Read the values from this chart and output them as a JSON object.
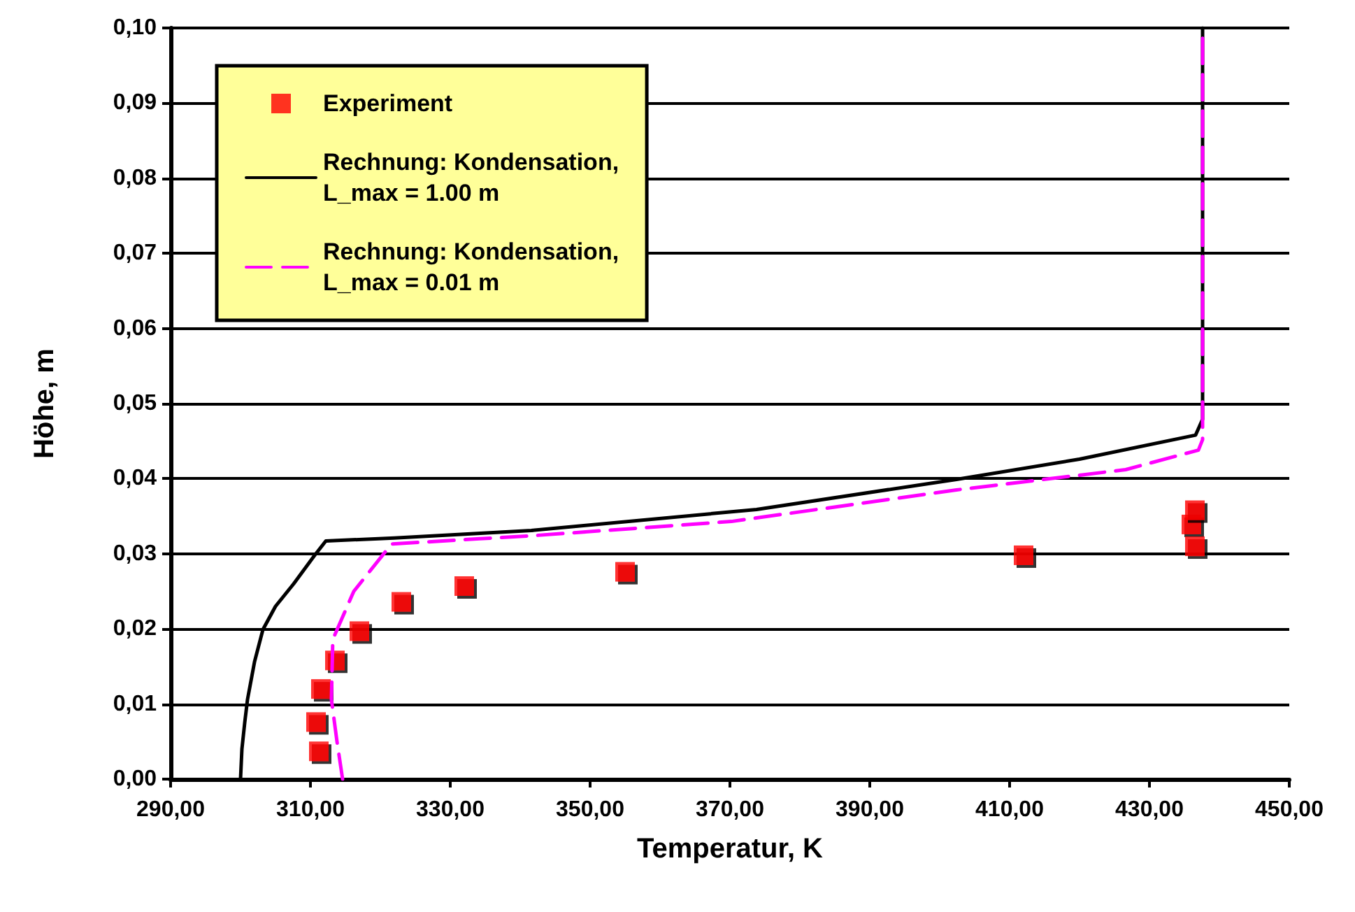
{
  "chart_data": {
    "type": "line",
    "xlabel": "Temperatur, K",
    "ylabel": "Höhe, m",
    "xlim": [
      290,
      450
    ],
    "ylim": [
      0,
      0.1
    ],
    "xticks": [
      {
        "value": 290,
        "label": "290,00"
      },
      {
        "value": 310,
        "label": "310,00"
      },
      {
        "value": 330,
        "label": "330,00"
      },
      {
        "value": 350,
        "label": "350,00"
      },
      {
        "value": 370,
        "label": "370,00"
      },
      {
        "value": 390,
        "label": "390,00"
      },
      {
        "value": 410,
        "label": "410,00"
      },
      {
        "value": 430,
        "label": "430,00"
      },
      {
        "value": 450,
        "label": "450,00"
      }
    ],
    "yticks": [
      {
        "value": 0,
        "label": "0,00"
      },
      {
        "value": 0.01,
        "label": "0,01"
      },
      {
        "value": 0.02,
        "label": "0,02"
      },
      {
        "value": 0.03,
        "label": "0,03"
      },
      {
        "value": 0.04,
        "label": "0,04"
      },
      {
        "value": 0.05,
        "label": "0,05"
      },
      {
        "value": 0.06,
        "label": "0,06"
      },
      {
        "value": 0.07,
        "label": "0,07"
      },
      {
        "value": 0.08,
        "label": "0,08"
      },
      {
        "value": 0.09,
        "label": "0,09"
      },
      {
        "value": 0.1,
        "label": "0,10"
      }
    ],
    "grid": "y",
    "legend": "top left",
    "series": [
      {
        "name": "Experiment",
        "type": "scatter",
        "marker": "square",
        "color": "#ff0000",
        "x": [
          311.2,
          310.8,
          311.5,
          313.5,
          317,
          323,
          332,
          355,
          412,
          436,
          436.5,
          436.5
        ],
        "values": [
          0.0037,
          0.0076,
          0.012,
          0.0158,
          0.0197,
          0.0236,
          0.0257,
          0.0276,
          0.0298,
          0.0339,
          0.0358,
          0.031
        ]
      },
      {
        "name": "Rechnung: Kondensation,\nL_max = 1.00 m",
        "line_style": "solid",
        "marker": "none",
        "color": "#000000",
        "x": [
          300,
          300.2,
          300.6,
          301,
          302,
          303.2,
          305,
          307.6,
          310.6,
          312.2,
          322,
          341.6,
          373.8,
          402.4,
          420,
          436.6,
          437.6,
          437.6
        ],
        "values": [
          0,
          0.004,
          0.0075,
          0.0106,
          0.0156,
          0.0199,
          0.023,
          0.026,
          0.0298,
          0.0317,
          0.0321,
          0.0331,
          0.0359,
          0.0399,
          0.0426,
          0.0458,
          0.0479,
          0.1
        ]
      },
      {
        "name": "Rechnung: Kondensation,\nL_max = 0.01 m",
        "line_style": "dashed",
        "marker": "none",
        "color": "#ff00ff",
        "x": [
          314.6,
          313.8,
          313,
          313.2,
          316.2,
          321.6,
          334.2,
          341.6,
          370.2,
          402.4,
          426.6,
          437,
          437.6,
          437.6
        ],
        "values": [
          0,
          0.005,
          0.0106,
          0.0186,
          0.025,
          0.0313,
          0.032,
          0.0324,
          0.0343,
          0.0385,
          0.0412,
          0.0438,
          0.0452,
          0.1
        ]
      }
    ]
  }
}
